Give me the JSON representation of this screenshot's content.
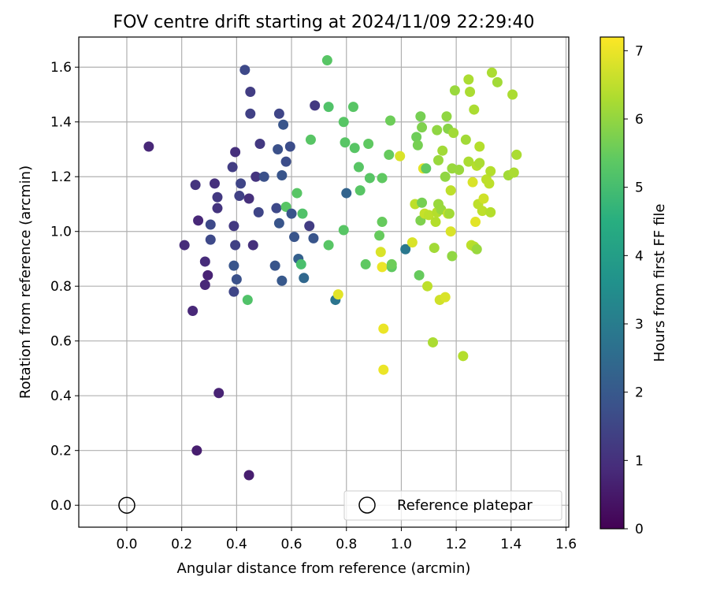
{
  "chart_data": {
    "type": "scatter",
    "title": "FOV centre drift starting at 2024/11/09 22:29:40",
    "xlabel": "Angular distance from reference (arcmin)",
    "ylabel": "Rotation from reference (arcmin)",
    "xlim": [
      -0.175,
      1.61
    ],
    "ylim": [
      -0.08,
      1.71
    ],
    "xticks": [
      0.0,
      0.2,
      0.4,
      0.6,
      0.8,
      1.0,
      1.2,
      1.4,
      1.6
    ],
    "xtick_labels": [
      "0.0",
      "0.2",
      "0.4",
      "0.6",
      "0.8",
      "1.0",
      "1.2",
      "1.4",
      "1.6"
    ],
    "yticks": [
      0.0,
      0.2,
      0.4,
      0.6,
      0.8,
      1.0,
      1.2,
      1.4,
      1.6
    ],
    "ytick_labels": [
      "0.0",
      "0.2",
      "0.4",
      "0.6",
      "0.8",
      "1.0",
      "1.2",
      "1.4",
      "1.6"
    ],
    "grid": true,
    "colorbar": {
      "label": "Hours from first FF file",
      "colormap": "viridis",
      "range": [
        0,
        7.2
      ],
      "ticks": [
        0,
        1,
        2,
        3,
        4,
        5,
        6,
        7
      ],
      "tick_labels": [
        "0",
        "1",
        "2",
        "3",
        "4",
        "5",
        "6",
        "7"
      ]
    },
    "legend": {
      "position": "lower right",
      "entries": [
        {
          "label": "Reference platepar",
          "marker": "open-circle"
        }
      ]
    },
    "reference_point": {
      "x": 0.0,
      "y": 0.0
    },
    "columns": [
      "x",
      "y",
      "hours"
    ],
    "points": [
      [
        0.08,
        1.31,
        0.8
      ],
      [
        0.21,
        0.95,
        0.9
      ],
      [
        0.24,
        0.71,
        0.8
      ],
      [
        0.255,
        0.2,
        0.6
      ],
      [
        0.25,
        1.17,
        1.1
      ],
      [
        0.26,
        1.04,
        0.8
      ],
      [
        0.285,
        0.89,
        0.9
      ],
      [
        0.285,
        0.805,
        0.8
      ],
      [
        0.295,
        0.84,
        0.7
      ],
      [
        0.305,
        1.025,
        1.6
      ],
      [
        0.305,
        0.97,
        1.6
      ],
      [
        0.32,
        1.175,
        1.0
      ],
      [
        0.33,
        1.125,
        1.2
      ],
      [
        0.33,
        1.085,
        1.1
      ],
      [
        0.335,
        0.41,
        0.7
      ],
      [
        0.385,
        1.235,
        1.3
      ],
      [
        0.39,
        1.02,
        1.2
      ],
      [
        0.39,
        0.875,
        1.9
      ],
      [
        0.39,
        0.78,
        1.5
      ],
      [
        0.395,
        0.95,
        1.4
      ],
      [
        0.395,
        1.29,
        1.0
      ],
      [
        0.4,
        0.825,
        1.8
      ],
      [
        0.41,
        1.13,
        1.4
      ],
      [
        0.415,
        1.175,
        1.5
      ],
      [
        0.43,
        1.59,
        1.6
      ],
      [
        0.44,
        0.75,
        5.2
      ],
      [
        0.445,
        0.11,
        0.6
      ],
      [
        0.445,
        1.12,
        1.0
      ],
      [
        0.45,
        1.51,
        1.3
      ],
      [
        0.45,
        1.43,
        1.4
      ],
      [
        0.46,
        0.95,
        1.0
      ],
      [
        0.47,
        1.2,
        1.1
      ],
      [
        0.48,
        1.07,
        1.5
      ],
      [
        0.485,
        1.32,
        1.2
      ],
      [
        0.5,
        1.2,
        1.8
      ],
      [
        0.54,
        0.875,
        1.9
      ],
      [
        0.545,
        1.085,
        1.6
      ],
      [
        0.55,
        1.3,
        1.8
      ],
      [
        0.555,
        1.43,
        1.5
      ],
      [
        0.555,
        1.03,
        1.9
      ],
      [
        0.565,
        1.205,
        1.9
      ],
      [
        0.565,
        0.82,
        2.0
      ],
      [
        0.57,
        1.39,
        1.9
      ],
      [
        0.58,
        1.255,
        1.7
      ],
      [
        0.58,
        1.09,
        5.3
      ],
      [
        0.595,
        1.31,
        1.7
      ],
      [
        0.6,
        1.065,
        1.9
      ],
      [
        0.61,
        0.98,
        1.9
      ],
      [
        0.62,
        1.14,
        5.3
      ],
      [
        0.625,
        0.9,
        2.2
      ],
      [
        0.635,
        0.88,
        5.1
      ],
      [
        0.64,
        1.065,
        5.2
      ],
      [
        0.645,
        0.83,
        2.4
      ],
      [
        0.665,
        1.02,
        1.3
      ],
      [
        0.67,
        1.335,
        5.3
      ],
      [
        0.68,
        0.975,
        1.9
      ],
      [
        0.685,
        1.46,
        1.2
      ],
      [
        0.73,
        1.625,
        5.3
      ],
      [
        0.735,
        1.455,
        5.2
      ],
      [
        0.735,
        0.95,
        5.3
      ],
      [
        0.76,
        0.75,
        2.8
      ],
      [
        0.77,
        0.77,
        6.9
      ],
      [
        0.79,
        1.4,
        5.3
      ],
      [
        0.79,
        1.005,
        5.3
      ],
      [
        0.795,
        1.325,
        5.3
      ],
      [
        0.8,
        1.14,
        2.3
      ],
      [
        0.825,
        1.455,
        5.3
      ],
      [
        0.83,
        1.305,
        5.3
      ],
      [
        0.845,
        1.235,
        5.3
      ],
      [
        0.85,
        1.15,
        5.3
      ],
      [
        0.87,
        0.88,
        5.4
      ],
      [
        0.88,
        1.32,
        5.4
      ],
      [
        0.885,
        1.195,
        5.3
      ],
      [
        0.92,
        0.985,
        5.5
      ],
      [
        0.925,
        0.925,
        6.8
      ],
      [
        0.93,
        1.035,
        5.5
      ],
      [
        0.93,
        1.195,
        5.4
      ],
      [
        0.93,
        0.87,
        7.0
      ],
      [
        0.935,
        0.645,
        7.0
      ],
      [
        0.935,
        0.495,
        7.0
      ],
      [
        0.955,
        1.28,
        5.5
      ],
      [
        0.96,
        1.405,
        5.6
      ],
      [
        0.965,
        0.87,
        5.4
      ],
      [
        0.965,
        0.88,
        5.6
      ],
      [
        0.995,
        1.275,
        6.8
      ],
      [
        1.015,
        0.935,
        2.9
      ],
      [
        1.04,
        0.96,
        6.8
      ],
      [
        1.05,
        1.1,
        6.5
      ],
      [
        1.055,
        1.345,
        5.6
      ],
      [
        1.06,
        1.315,
        5.7
      ],
      [
        1.065,
        0.84,
        5.5
      ],
      [
        1.07,
        1.42,
        5.7
      ],
      [
        1.07,
        1.04,
        5.8
      ],
      [
        1.075,
        1.38,
        5.8
      ],
      [
        1.075,
        1.105,
        5.7
      ],
      [
        1.08,
        1.23,
        6.9
      ],
      [
        1.085,
        1.065,
        6.6
      ],
      [
        1.09,
        1.23,
        5.4
      ],
      [
        1.095,
        0.8,
        6.5
      ],
      [
        1.1,
        1.06,
        6.5
      ],
      [
        1.115,
        0.595,
        6.3
      ],
      [
        1.12,
        0.94,
        6.2
      ],
      [
        1.125,
        1.035,
        6.4
      ],
      [
        1.13,
        1.07,
        6.4
      ],
      [
        1.13,
        1.37,
        6.0
      ],
      [
        1.135,
        1.26,
        6.1
      ],
      [
        1.135,
        1.1,
        6.1
      ],
      [
        1.14,
        0.75,
        6.7
      ],
      [
        1.145,
        1.08,
        6.1
      ],
      [
        1.15,
        1.295,
        6.2
      ],
      [
        1.16,
        0.76,
        6.8
      ],
      [
        1.16,
        1.2,
        6.0
      ],
      [
        1.165,
        1.42,
        6.0
      ],
      [
        1.17,
        1.375,
        5.9
      ],
      [
        1.17,
        1.065,
        6.6
      ],
      [
        1.175,
        1.065,
        6.2
      ],
      [
        1.18,
        1.15,
        6.5
      ],
      [
        1.18,
        1.0,
        6.8
      ],
      [
        1.185,
        0.91,
        6.0
      ],
      [
        1.185,
        1.23,
        6.1
      ],
      [
        1.19,
        1.36,
        6.2
      ],
      [
        1.195,
        1.515,
        6.1
      ],
      [
        1.21,
        1.225,
        6.1
      ],
      [
        1.225,
        0.545,
        6.4
      ],
      [
        1.235,
        1.335,
        6.2
      ],
      [
        1.245,
        1.555,
        6.3
      ],
      [
        1.245,
        1.255,
        6.3
      ],
      [
        1.25,
        1.51,
        6.3
      ],
      [
        1.255,
        0.95,
        6.5
      ],
      [
        1.26,
        1.18,
        6.8
      ],
      [
        1.265,
        0.945,
        6.4
      ],
      [
        1.265,
        1.445,
        6.3
      ],
      [
        1.27,
        1.035,
        6.9
      ],
      [
        1.275,
        1.24,
        6.4
      ],
      [
        1.275,
        0.935,
        6.1
      ],
      [
        1.28,
        1.1,
        6.5
      ],
      [
        1.285,
        1.25,
        6.3
      ],
      [
        1.285,
        1.31,
        6.4
      ],
      [
        1.295,
        1.075,
        6.5
      ],
      [
        1.3,
        1.12,
        6.7
      ],
      [
        1.31,
        1.19,
        6.5
      ],
      [
        1.32,
        1.175,
        6.5
      ],
      [
        1.325,
        1.22,
        6.4
      ],
      [
        1.325,
        1.07,
        6.4
      ],
      [
        1.33,
        1.58,
        6.3
      ],
      [
        1.35,
        1.545,
        6.2
      ],
      [
        1.39,
        1.205,
        6.2
      ],
      [
        1.405,
        1.5,
        6.3
      ],
      [
        1.41,
        1.215,
        6.3
      ],
      [
        1.42,
        1.28,
        6.3
      ]
    ]
  }
}
